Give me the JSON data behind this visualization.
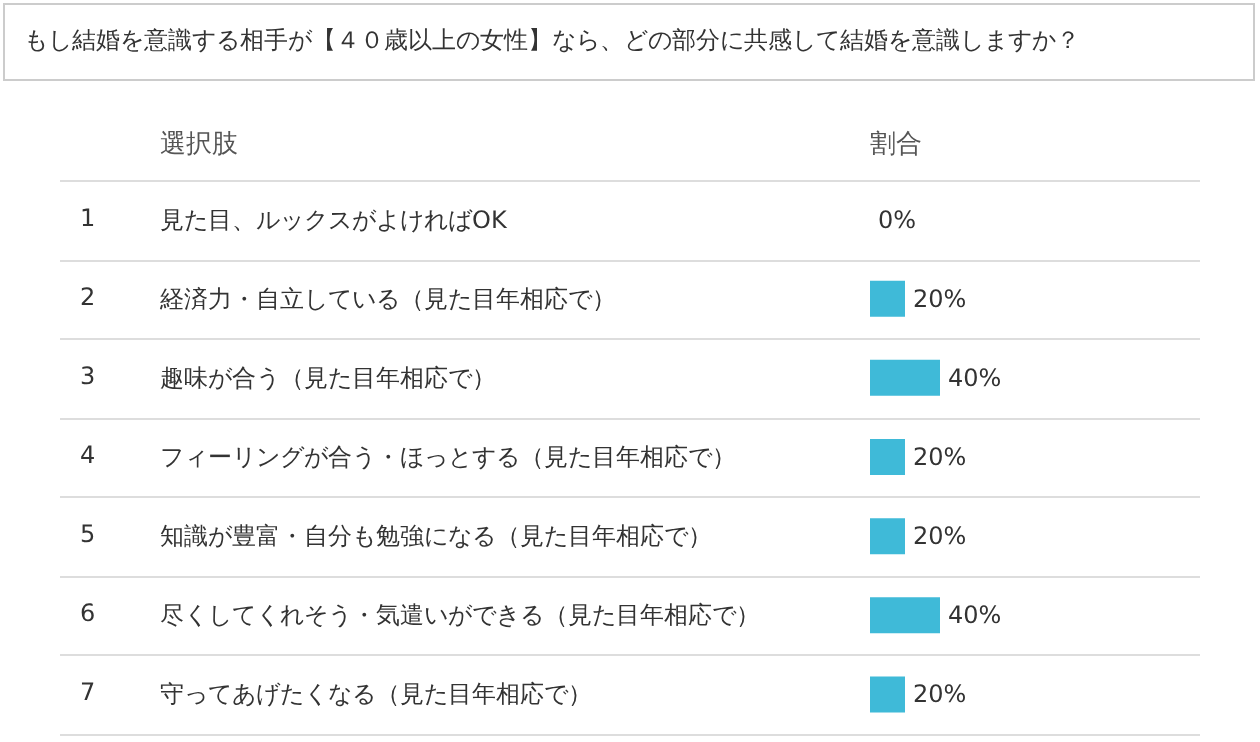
{
  "chart_data": {
    "type": "bar",
    "orientation": "horizontal",
    "title": "もし結婚を意識する相手が【４０歳以上の女性】なら、どの部分に共感して結婚を意識しますか？",
    "ylabel": "選択肢",
    "xlabel": "割合",
    "categories": [
      "見た目、ルックスがよければOK",
      "経済力・自立している（見た目年相応で）",
      "趣味が合う（見た目年相応で）",
      "フィーリングが合う・ほっとする（見た目年相応で）",
      "知識が豊富・自分も勉強になる（見た目年相応で）",
      "尽くしてくれそう・気遣いができる（見た目年相応で）",
      "守ってあげたくなる（見た目年相応で）"
    ],
    "values": [
      0,
      20,
      40,
      20,
      20,
      40,
      20
    ],
    "value_labels": [
      "0%",
      "20%",
      "40%",
      "20%",
      "20%",
      "40%",
      "20%"
    ],
    "color": "#3fbad8",
    "tick_labels": "y",
    "grid": false,
    "annotations": [
      "1",
      "2",
      "3",
      "4",
      "5",
      "6",
      "7"
    ]
  }
}
